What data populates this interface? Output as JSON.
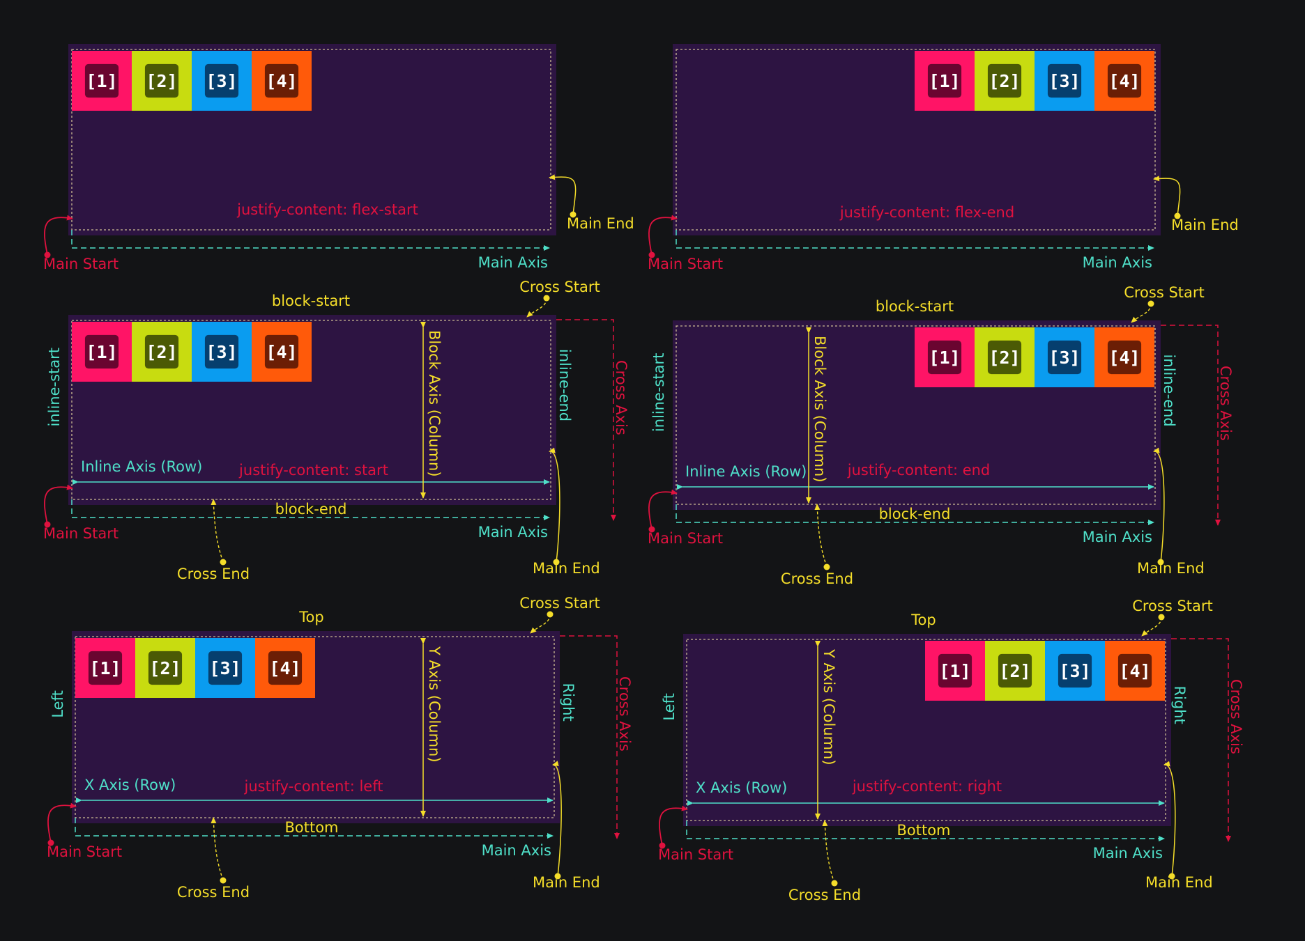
{
  "colors": {
    "background": "#131416",
    "container": "#2d1442",
    "item1": "#ff1466",
    "item2": "#c8dc10",
    "item3": "#0a9cf0",
    "item4": "#ff5a0a",
    "main_start": "#e0123f",
    "cross_axis": "#e0123f",
    "main_axis": "#4fe0c9",
    "block_axis": "#f5de2a"
  },
  "item_labels": [
    "[1]",
    "[2]",
    "[3]",
    "[4]"
  ],
  "panels": [
    {
      "justify": "justify-content: flex-start",
      "main_start": "Main Start",
      "main_end": "Main End",
      "main_axis": "Main Axis"
    },
    {
      "justify": "justify-content: flex-end",
      "main_start": "Main Start",
      "main_end": "Main End",
      "main_axis": "Main Axis"
    },
    {
      "justify": "justify-content: start",
      "top": "block-start",
      "bottom": "block-end",
      "left": "inline-start",
      "right": "inline-end",
      "inline_axis": "Inline Axis (Row)",
      "block_axis": "Block Axis (Column)",
      "cross_axis": "Cross Axis",
      "cross_start": "Cross Start",
      "cross_end": "Cross End",
      "main_start": "Main Start",
      "main_end": "Main End",
      "main_axis": "Main Axis"
    },
    {
      "justify": "justify-content: end",
      "top": "block-start",
      "bottom": "block-end",
      "left": "inline-start",
      "right": "inline-end",
      "inline_axis": "Inline Axis (Row)",
      "block_axis": "Block Axis (Column)",
      "cross_axis": "Cross Axis",
      "cross_start": "Cross Start",
      "cross_end": "Cross End",
      "main_start": "Main Start",
      "main_end": "Main End",
      "main_axis": "Main Axis"
    },
    {
      "justify": "justify-content: left",
      "top": "Top",
      "bottom": "Bottom",
      "left": "Left",
      "right": "Right",
      "inline_axis": "X Axis (Row)",
      "block_axis": "Y Axis (Column)",
      "cross_axis": "Cross Axis",
      "cross_start": "Cross Start",
      "cross_end": "Cross End",
      "main_start": "Main Start",
      "main_end": "Main End",
      "main_axis": "Main Axis"
    },
    {
      "justify": "justify-content: right",
      "top": "Top",
      "bottom": "Bottom",
      "left": "Left",
      "right": "Right",
      "inline_axis": "X Axis (Row)",
      "block_axis": "Y Axis (Column)",
      "cross_axis": "Cross Axis",
      "cross_start": "Cross Start",
      "cross_end": "Cross End",
      "main_start": "Main Start",
      "main_end": "Main End",
      "main_axis": "Main Axis"
    }
  ]
}
